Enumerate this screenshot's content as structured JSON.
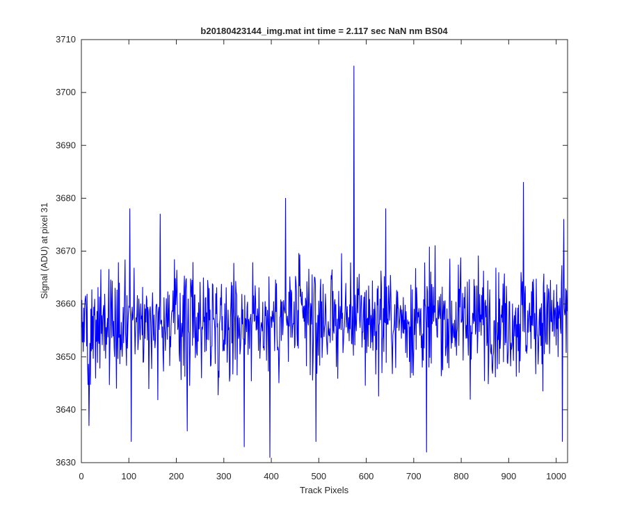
{
  "chart_data": {
    "type": "line",
    "title": "b20180423144_img.mat int time = 2.117 sec  NaN nm BS04",
    "xlabel": "Track Pixels",
    "ylabel": "Signal (ADU) at pixel 31",
    "xlim": [
      0,
      1024
    ],
    "ylim": [
      3630,
      3710
    ],
    "x_ticks": [
      0,
      100,
      200,
      300,
      400,
      500,
      600,
      700,
      800,
      900,
      1000
    ],
    "y_ticks": [
      3630,
      3640,
      3650,
      3660,
      3670,
      3680,
      3690,
      3700,
      3710
    ],
    "grid": false,
    "series": [
      {
        "color": "#0000ff",
        "n_points": 1024,
        "baseline": 3657,
        "noise_amplitude": 6,
        "notable_points": [
          {
            "x": 16,
            "y": 3637
          },
          {
            "x": 102,
            "y": 3678
          },
          {
            "x": 105,
            "y": 3634
          },
          {
            "x": 166,
            "y": 3677
          },
          {
            "x": 223,
            "y": 3636
          },
          {
            "x": 343,
            "y": 3633
          },
          {
            "x": 397,
            "y": 3631
          },
          {
            "x": 430,
            "y": 3680
          },
          {
            "x": 494,
            "y": 3634
          },
          {
            "x": 574,
            "y": 3705
          },
          {
            "x": 641,
            "y": 3678
          },
          {
            "x": 727,
            "y": 3632
          },
          {
            "x": 931,
            "y": 3683
          },
          {
            "x": 1013,
            "y": 3634
          },
          {
            "x": 1016,
            "y": 3676
          }
        ]
      }
    ]
  }
}
